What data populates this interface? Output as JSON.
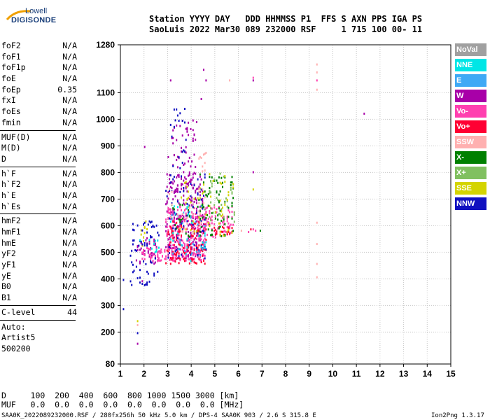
{
  "logo": {
    "line1": "Lowell",
    "line2": "DIGISONDE"
  },
  "header": {
    "line1": "Station YYYY DAY   DDD HHMMSS P1  FFS S AXN PPS IGA PS",
    "line2": "SaoLuis 2022 Mar30 089 232000 RSF     1 715 100 00- 11"
  },
  "params_group1": [
    {
      "label": "foF2",
      "value": "N/A"
    },
    {
      "label": "foF1",
      "value": "N/A"
    },
    {
      "label": "foF1p",
      "value": "N/A"
    },
    {
      "label": "foE",
      "value": "N/A"
    },
    {
      "label": "foEp",
      "value": "0.35"
    },
    {
      "label": "fxI",
      "value": "N/A"
    },
    {
      "label": "foEs",
      "value": "N/A"
    },
    {
      "label": "fmin",
      "value": "N/A"
    }
  ],
  "params_group2": [
    {
      "label": "MUF(D)",
      "value": "N/A"
    },
    {
      "label": "M(D)",
      "value": "N/A"
    },
    {
      "label": "D",
      "value": "N/A"
    }
  ],
  "params_group3": [
    {
      "label": "h`F",
      "value": "N/A"
    },
    {
      "label": "h`F2",
      "value": "N/A"
    },
    {
      "label": "h`E",
      "value": "N/A"
    },
    {
      "label": "h`Es",
      "value": "N/A"
    }
  ],
  "params_group4": [
    {
      "label": "hmF2",
      "value": "N/A"
    },
    {
      "label": "hmF1",
      "value": "N/A"
    },
    {
      "label": "hmE",
      "value": "N/A"
    },
    {
      "label": "yF2",
      "value": "N/A"
    },
    {
      "label": "yF1",
      "value": "N/A"
    },
    {
      "label": "yE",
      "value": "N/A"
    },
    {
      "label": "B0",
      "value": "N/A"
    },
    {
      "label": "B1",
      "value": "N/A"
    }
  ],
  "clevel": {
    "label": "C-level",
    "value": "44"
  },
  "auto": {
    "line1": "Auto:",
    "line2": "Artist5",
    "line3": "500200"
  },
  "muf_table": {
    "d_line": "D     100  200  400  600  800 1000 1500 3000 [km]",
    "muf_line": "MUF   0.0  0.0  0.0  0.0  0.0  0.0  0.0  0.0 [MHz]"
  },
  "footer": {
    "left": "SAA0K_2022089232000.RSF / 280fx256h 50 kHz 5.0 km / DPS-4 SAA0K 903 / 2.6 S 315.8 E",
    "right": "Ion2Png 1.3.17"
  },
  "legend": [
    {
      "name": "NoVal",
      "color": "#a0a0a0"
    },
    {
      "name": "NNE",
      "color": "#00e6e6"
    },
    {
      "name": "E",
      "color": "#3fa9f5"
    },
    {
      "name": "W",
      "color": "#a800a8"
    },
    {
      "name": "Vo-",
      "color": "#ff40b0"
    },
    {
      "name": "Vo+",
      "color": "#ff0033"
    },
    {
      "name": "SSW",
      "color": "#ffb0b0"
    },
    {
      "name": "X-",
      "color": "#008000"
    },
    {
      "name": "X+",
      "color": "#80c060"
    },
    {
      "name": "SSE",
      "color": "#d4d400"
    },
    {
      "name": "NNW",
      "color": "#1010c0"
    }
  ],
  "chart_data": {
    "type": "scatter",
    "title": "",
    "xlabel": "",
    "ylabel": "",
    "xlim": [
      1,
      15
    ],
    "ylim": [
      80,
      1280
    ],
    "xticks": [
      1,
      2,
      3,
      4,
      5,
      6,
      7,
      8,
      9,
      10,
      11,
      12,
      13,
      14,
      15
    ],
    "yticks": [
      80,
      200,
      300,
      400,
      500,
      600,
      700,
      800,
      900,
      1000,
      1100,
      1280
    ],
    "grid": true,
    "clusters": [
      {
        "name": "W",
        "color": "#a800a8",
        "regions": [
          [
            2.9,
            4.5,
            480,
            800,
            260
          ],
          [
            3.0,
            4.2,
            800,
            1000,
            50
          ],
          [
            1.6,
            2.5,
            460,
            560,
            40
          ]
        ]
      },
      {
        "name": "Vo-",
        "color": "#ff40b0",
        "regions": [
          [
            2.9,
            5.8,
            560,
            680,
            170
          ],
          [
            3.0,
            4.6,
            470,
            560,
            130
          ],
          [
            1.8,
            2.9,
            470,
            520,
            50
          ]
        ]
      },
      {
        "name": "Vo+",
        "color": "#ff0033",
        "regions": [
          [
            2.9,
            4.6,
            460,
            620,
            120
          ],
          [
            4.9,
            5.8,
            570,
            600,
            20
          ]
        ]
      },
      {
        "name": "X-",
        "color": "#008000",
        "regions": [
          [
            4.3,
            5.8,
            560,
            800,
            70
          ],
          [
            3.1,
            4.6,
            560,
            700,
            30
          ]
        ]
      },
      {
        "name": "X+",
        "color": "#80c060",
        "regions": [
          [
            4.7,
            5.8,
            600,
            800,
            35
          ]
        ]
      },
      {
        "name": "SSE",
        "color": "#d4d400",
        "regions": [
          [
            3.5,
            5.8,
            560,
            800,
            55
          ],
          [
            1.8,
            2.3,
            520,
            620,
            10
          ]
        ]
      },
      {
        "name": "NNW",
        "color": "#1010c0",
        "regions": [
          [
            1.4,
            2.6,
            380,
            620,
            60
          ],
          [
            2.9,
            4.6,
            480,
            800,
            70
          ],
          [
            3.1,
            3.8,
            800,
            1050,
            20
          ]
        ]
      },
      {
        "name": "NNE",
        "color": "#00e6e6",
        "regions": [
          [
            3.0,
            4.6,
            470,
            680,
            30
          ],
          [
            1.8,
            2.6,
            480,
            560,
            10
          ]
        ]
      },
      {
        "name": "E",
        "color": "#3fa9f5",
        "regions": [
          [
            3.0,
            4.6,
            480,
            700,
            25
          ]
        ]
      },
      {
        "name": "SSW",
        "color": "#ffb0b0",
        "regions": [
          [
            3.0,
            4.6,
            560,
            760,
            30
          ],
          [
            4.3,
            4.6,
            800,
            880,
            10
          ]
        ]
      }
    ],
    "points": [
      {
        "x": 9.3,
        "y": 1210,
        "c": "#ffb0b0"
      },
      {
        "x": 9.3,
        "y": 1180,
        "c": "#ffb0b0"
      },
      {
        "x": 9.3,
        "y": 1150,
        "c": "#ff40b0"
      },
      {
        "x": 9.3,
        "y": 1115,
        "c": "#ffb0b0"
      },
      {
        "x": 9.3,
        "y": 615,
        "c": "#ffb0b0"
      },
      {
        "x": 9.3,
        "y": 535,
        "c": "#ffb0b0"
      },
      {
        "x": 9.3,
        "y": 460,
        "c": "#ffb0b0"
      },
      {
        "x": 9.3,
        "y": 410,
        "c": "#ffb0b0"
      },
      {
        "x": 11.3,
        "y": 1025,
        "c": "#a800a8"
      },
      {
        "x": 6.6,
        "y": 1150,
        "c": "#a800a8"
      },
      {
        "x": 6.6,
        "y": 1160,
        "c": "#ff40b0"
      },
      {
        "x": 6.6,
        "y": 805,
        "c": "#a800a8"
      },
      {
        "x": 6.6,
        "y": 590,
        "c": "#ff40b0"
      },
      {
        "x": 6.4,
        "y": 580,
        "c": "#ff40b0"
      },
      {
        "x": 6.9,
        "y": 585,
        "c": "#008000"
      },
      {
        "x": 6.7,
        "y": 585,
        "c": "#ff40b0"
      },
      {
        "x": 6.1,
        "y": 585,
        "c": "#ffb0b0"
      },
      {
        "x": 6.6,
        "y": 740,
        "c": "#d4d400"
      },
      {
        "x": 6.5,
        "y": 590,
        "c": "#ff0033"
      },
      {
        "x": 5.6,
        "y": 1150,
        "c": "#ffb0b0"
      },
      {
        "x": 4.5,
        "y": 1190,
        "c": "#a800a8"
      },
      {
        "x": 4.6,
        "y": 1150,
        "c": "#a800a8"
      },
      {
        "x": 4.4,
        "y": 1080,
        "c": "#a800a8"
      },
      {
        "x": 3.1,
        "y": 1150,
        "c": "#a800a8"
      },
      {
        "x": 2.0,
        "y": 900,
        "c": "#a800a8"
      },
      {
        "x": 1.1,
        "y": 290,
        "c": "#1010c0"
      },
      {
        "x": 1.1,
        "y": 400,
        "c": "#1010c0"
      },
      {
        "x": 1.7,
        "y": 160,
        "c": "#a800a8"
      },
      {
        "x": 1.7,
        "y": 200,
        "c": "#1010c0"
      },
      {
        "x": 1.7,
        "y": 245,
        "c": "#d4d400"
      },
      {
        "x": 1.7,
        "y": 230,
        "c": "#ffb0b0"
      },
      {
        "x": 1.8,
        "y": 390,
        "c": "#1010c0"
      },
      {
        "x": 1.9,
        "y": 385,
        "c": "#1010c0"
      },
      {
        "x": 2.0,
        "y": 380,
        "c": "#1010c0"
      },
      {
        "x": 2.1,
        "y": 390,
        "c": "#1010c0"
      },
      {
        "x": 1.9,
        "y": 395,
        "c": "#a800a8"
      }
    ]
  }
}
